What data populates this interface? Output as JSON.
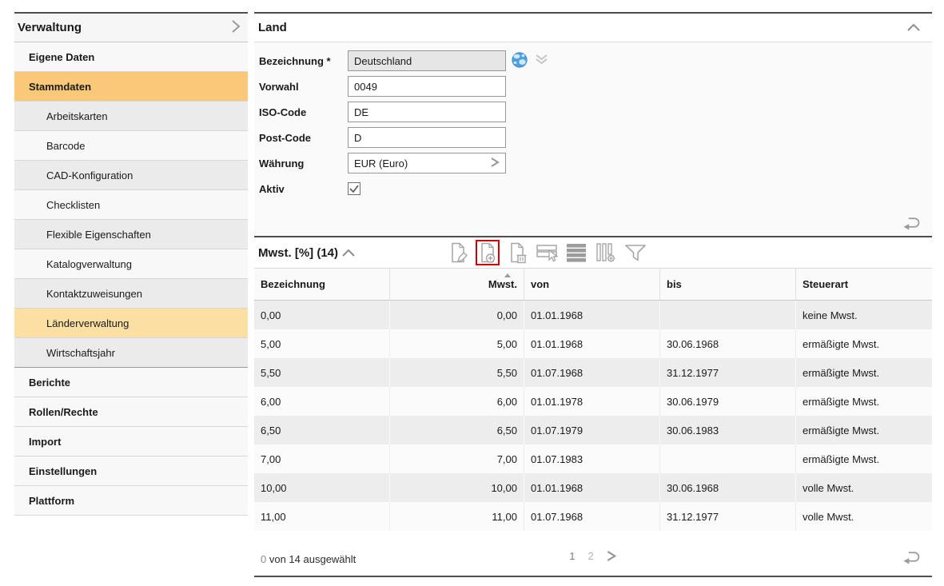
{
  "colors": {
    "selected_orange": "#f9c878",
    "highlight_orange": "#fbdfa3",
    "toolbar_highlight_red": "#d40000",
    "dark_border": "#4f4f4f",
    "icon_gray": "#a6a6a6"
  },
  "sidebar": {
    "title": "Verwaltung",
    "chevron_icon": "chevron-right-icon",
    "items": [
      {
        "label": "Eigene Daten",
        "level": 1,
        "bg": "light",
        "state": "normal"
      },
      {
        "label": "Stammdaten",
        "level": 1,
        "bg": "orange",
        "state": "selected"
      },
      {
        "label": "Arbeitskarten",
        "level": 2,
        "bg": "gray",
        "state": "normal"
      },
      {
        "label": "Barcode",
        "level": 2,
        "bg": "light",
        "state": "normal"
      },
      {
        "label": "CAD-Konfiguration",
        "level": 2,
        "bg": "gray",
        "state": "normal"
      },
      {
        "label": "Checklisten",
        "level": 2,
        "bg": "light",
        "state": "normal"
      },
      {
        "label": "Flexible Eigenschaften",
        "level": 2,
        "bg": "gray",
        "state": "normal"
      },
      {
        "label": "Katalogverwaltung",
        "level": 2,
        "bg": "light",
        "state": "normal"
      },
      {
        "label": "Kontaktzuweisungen",
        "level": 2,
        "bg": "gray",
        "state": "normal"
      },
      {
        "label": "Länderverwaltung",
        "level": 2,
        "bg": "orange-light",
        "state": "highlighted"
      },
      {
        "label": "Wirtschaftsjahr",
        "level": 2,
        "bg": "gray",
        "state": "normal",
        "section_end": true
      },
      {
        "label": "Berichte",
        "level": 1,
        "bg": "light",
        "state": "normal"
      },
      {
        "label": "Rollen/Rechte",
        "level": 1,
        "bg": "light",
        "state": "normal"
      },
      {
        "label": "Import",
        "level": 1,
        "bg": "light",
        "state": "normal"
      },
      {
        "label": "Einstellungen",
        "level": 1,
        "bg": "light",
        "state": "normal"
      },
      {
        "label": "Plattform",
        "level": 1,
        "bg": "light",
        "state": "normal"
      }
    ]
  },
  "land_panel": {
    "title": "Land",
    "collapse_icon": "chevron-up-icon",
    "undo_icon": "undo-icon",
    "fields": [
      {
        "label": "Bezeichnung *",
        "value": "Deutschland",
        "type": "text-disabled",
        "icons": [
          "globe-icon",
          "double-chevron-down-icon"
        ]
      },
      {
        "label": "Vorwahl",
        "value": "0049",
        "type": "text"
      },
      {
        "label": "ISO-Code",
        "value": "DE",
        "type": "text"
      },
      {
        "label": "Post-Code",
        "value": "D",
        "type": "text"
      },
      {
        "label": "Währung",
        "value": "EUR (Euro)",
        "type": "selector",
        "icons": [
          "chevron-right-icon"
        ]
      },
      {
        "label": "Aktiv",
        "checked": true,
        "type": "checkbox"
      }
    ]
  },
  "mwst_panel": {
    "title": "Mwst. [%] (14)",
    "collapse_icon": "chevron-up-icon",
    "undo_icon": "undo-icon",
    "toolbar": [
      {
        "name": "edit-record-icon",
        "highlighted": false
      },
      {
        "name": "add-record-icon",
        "highlighted": true
      },
      {
        "name": "delete-record-icon",
        "highlighted": false
      },
      {
        "name": "select-rows-icon",
        "highlighted": false
      },
      {
        "name": "rows-view-icon",
        "highlighted": false
      },
      {
        "name": "column-settings-icon",
        "highlighted": false
      },
      {
        "name": "filter-icon",
        "highlighted": false
      }
    ],
    "table": {
      "columns": [
        "Bezeichnung",
        "Mwst.",
        "von",
        "bis",
        "Steuerart"
      ],
      "sort": {
        "column": "Mwst.",
        "direction": "asc"
      },
      "rows": [
        [
          "0,00",
          "0,00",
          "01.01.1968",
          "",
          "keine Mwst."
        ],
        [
          "5,00",
          "5,00",
          "01.01.1968",
          "30.06.1968",
          "ermäßigte Mwst."
        ],
        [
          "5,50",
          "5,50",
          "01.07.1968",
          "31.12.1977",
          "ermäßigte Mwst."
        ],
        [
          "6,00",
          "6,00",
          "01.01.1978",
          "30.06.1979",
          "ermäßigte Mwst."
        ],
        [
          "6,50",
          "6,50",
          "01.07.1979",
          "30.06.1983",
          "ermäßigte Mwst."
        ],
        [
          "7,00",
          "7,00",
          "01.07.1983",
          "",
          "ermäßigte Mwst."
        ],
        [
          "10,00",
          "10,00",
          "01.01.1968",
          "30.06.1968",
          "volle Mwst."
        ],
        [
          "11,00",
          "11,00",
          "01.07.1968",
          "31.12.1977",
          "volle Mwst."
        ]
      ]
    },
    "footer": {
      "selection_count": "0",
      "selection_text": "von 14 ausgewählt",
      "pages": [
        "1",
        "2"
      ],
      "current_page": "1",
      "next_icon": "chevron-right-icon"
    }
  }
}
